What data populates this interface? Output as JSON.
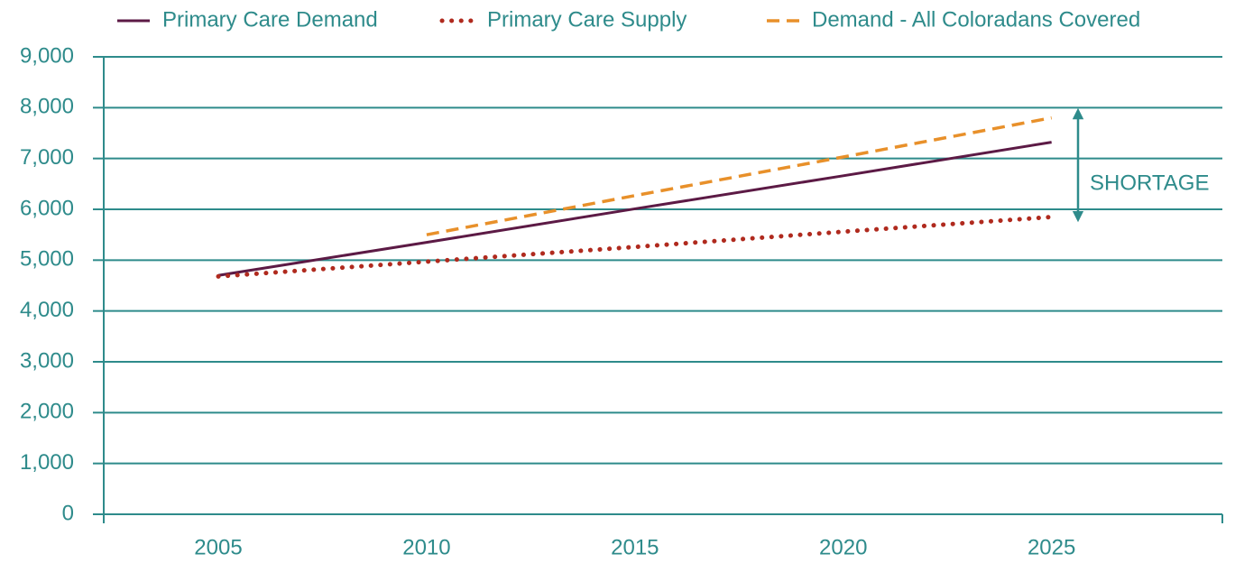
{
  "chart_data": {
    "type": "line",
    "annotation": "SHORTAGE",
    "x": [
      2005,
      2010,
      2015,
      2020,
      2025
    ],
    "series": [
      {
        "name": "Primary Care Demand",
        "color": "#5c1a45",
        "style": "solid",
        "values": [
          4700,
          5350,
          6010,
          6660,
          7320
        ]
      },
      {
        "name": "Primary Care Supply",
        "color": "#b02a1e",
        "style": "dotted",
        "values": [
          4680,
          4970,
          5260,
          5560,
          5850
        ]
      },
      {
        "name": "Demand - All Coloradans  Covered",
        "color": "#e8902a",
        "style": "dashed",
        "values": [
          null,
          5500,
          6270,
          7030,
          7800
        ]
      }
    ],
    "xlim": [
      2002.25,
      2029.1
    ],
    "xticks": [
      2005,
      2010,
      2015,
      2020,
      2025
    ],
    "ylim": [
      0,
      9000
    ],
    "yticks": [
      0,
      {
        "value": 1000,
        "label": "1,000"
      },
      {
        "value": 2000,
        "label": "2,000"
      },
      {
        "value": 3000,
        "label": "3,000"
      },
      {
        "value": 4000,
        "label": "4,000"
      },
      {
        "value": 5000,
        "label": "5,000"
      },
      {
        "value": 6000,
        "label": "6,000"
      },
      {
        "value": 7000,
        "label": "7,000"
      },
      {
        "value": 8000,
        "label": "8,000"
      },
      {
        "value": 9000,
        "label": "9,000"
      }
    ],
    "grid": true,
    "legend": "top"
  }
}
